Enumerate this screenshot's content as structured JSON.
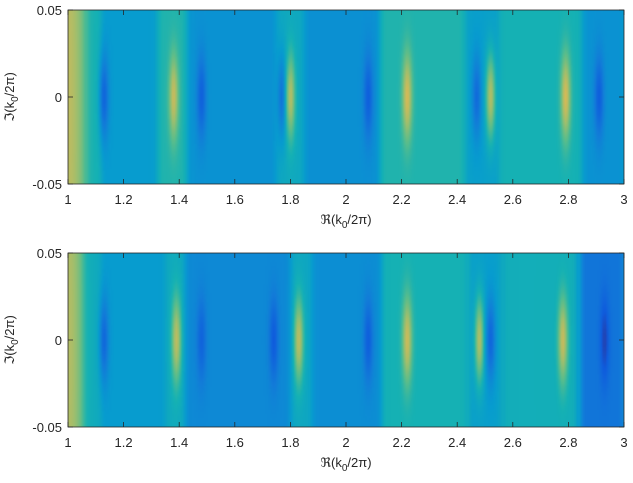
{
  "chart_data": [
    {
      "type": "heatmap",
      "title": "",
      "xlabel": "ℜ(k₀/2π)",
      "ylabel": "ℑ(k₀/2π)",
      "xlabel_parts": {
        "prefix": "ℜ(k",
        "sub": "0",
        "suffix": "/2π)"
      },
      "ylabel_parts": {
        "prefix": "ℑ(k",
        "sub": "0",
        "suffix": "/2π)"
      },
      "xlim": [
        1,
        3
      ],
      "ylim": [
        -0.05,
        0.05
      ],
      "xticks": [
        "1",
        "1.2",
        "1.4",
        "1.6",
        "1.8",
        "2",
        "2.2",
        "2.4",
        "2.6",
        "2.8",
        "3"
      ],
      "yticks": [
        "-0.05",
        "0",
        "0.05"
      ],
      "colormap": "parula",
      "grid": false,
      "base_level": 0.42,
      "features": [
        {
          "x": 1.0,
          "level": 0.8,
          "kind": "peak"
        },
        {
          "x": 1.13,
          "level": 0.16,
          "kind": "dip"
        },
        {
          "x": 1.38,
          "level": 0.82,
          "kind": "peak"
        },
        {
          "x": 1.48,
          "level": 0.14,
          "kind": "dip"
        },
        {
          "x": 1.77,
          "level": 0.2,
          "kind": "dip"
        },
        {
          "x": 1.8,
          "level": 0.78,
          "kind": "peak"
        },
        {
          "x": 2.08,
          "level": 0.13,
          "kind": "dip"
        },
        {
          "x": 2.22,
          "level": 0.85,
          "kind": "peak"
        },
        {
          "x": 2.47,
          "level": 0.18,
          "kind": "dip"
        },
        {
          "x": 2.52,
          "level": 0.78,
          "kind": "peak"
        },
        {
          "x": 2.79,
          "level": 0.85,
          "kind": "peak"
        },
        {
          "x": 2.91,
          "level": 0.13,
          "kind": "dip"
        }
      ],
      "bands": [
        {
          "x0": 1.0,
          "x1": 1.06,
          "level": 0.62
        },
        {
          "x0": 1.06,
          "x1": 1.12,
          "level": 0.5
        },
        {
          "x0": 1.12,
          "x1": 1.32,
          "level": 0.38
        },
        {
          "x0": 1.32,
          "x1": 1.43,
          "level": 0.52
        },
        {
          "x0": 1.43,
          "x1": 1.75,
          "level": 0.34
        },
        {
          "x0": 1.75,
          "x1": 1.85,
          "level": 0.45
        },
        {
          "x0": 1.85,
          "x1": 2.12,
          "level": 0.33
        },
        {
          "x0": 2.12,
          "x1": 2.43,
          "level": 0.52
        },
        {
          "x0": 2.43,
          "x1": 2.55,
          "level": 0.4
        },
        {
          "x0": 2.55,
          "x1": 2.85,
          "level": 0.5
        },
        {
          "x0": 2.85,
          "x1": 3.0,
          "level": 0.34
        }
      ]
    },
    {
      "type": "heatmap",
      "title": "",
      "xlabel": "ℜ(k₀/2π)",
      "ylabel": "ℑ(k₀/2π)",
      "xlabel_parts": {
        "prefix": "ℜ(k",
        "sub": "0",
        "suffix": "/2π)"
      },
      "ylabel_parts": {
        "prefix": "ℑ(k",
        "sub": "0",
        "suffix": "/2π)"
      },
      "xlim": [
        1,
        3
      ],
      "ylim": [
        -0.05,
        0.05
      ],
      "xticks": [
        "1",
        "1.2",
        "1.4",
        "1.6",
        "1.8",
        "2",
        "2.2",
        "2.4",
        "2.6",
        "2.8",
        "3"
      ],
      "yticks": [
        "-0.05",
        "0",
        "0.05"
      ],
      "colormap": "parula",
      "grid": false,
      "base_level": 0.4,
      "features": [
        {
          "x": 1.0,
          "level": 0.78,
          "kind": "peak"
        },
        {
          "x": 1.13,
          "level": 0.17,
          "kind": "dip"
        },
        {
          "x": 1.39,
          "level": 0.8,
          "kind": "peak"
        },
        {
          "x": 1.48,
          "level": 0.15,
          "kind": "dip"
        },
        {
          "x": 1.74,
          "level": 0.12,
          "kind": "dip"
        },
        {
          "x": 1.83,
          "level": 0.8,
          "kind": "peak"
        },
        {
          "x": 2.08,
          "level": 0.13,
          "kind": "dip"
        },
        {
          "x": 2.22,
          "level": 0.83,
          "kind": "peak"
        },
        {
          "x": 2.48,
          "level": 0.78,
          "kind": "peak"
        },
        {
          "x": 2.52,
          "level": 0.16,
          "kind": "dip"
        },
        {
          "x": 2.78,
          "level": 0.82,
          "kind": "peak"
        },
        {
          "x": 2.93,
          "level": 0.06,
          "kind": "dip"
        }
      ],
      "bands": [
        {
          "x0": 1.0,
          "x1": 1.05,
          "level": 0.58
        },
        {
          "x0": 1.05,
          "x1": 1.12,
          "level": 0.46
        },
        {
          "x0": 1.12,
          "x1": 1.35,
          "level": 0.38
        },
        {
          "x0": 1.35,
          "x1": 1.42,
          "level": 0.46
        },
        {
          "x0": 1.42,
          "x1": 1.8,
          "level": 0.3
        },
        {
          "x0": 1.8,
          "x1": 1.88,
          "level": 0.44
        },
        {
          "x0": 1.88,
          "x1": 2.13,
          "level": 0.32
        },
        {
          "x0": 2.13,
          "x1": 2.44,
          "level": 0.5
        },
        {
          "x0": 2.44,
          "x1": 2.56,
          "level": 0.4
        },
        {
          "x0": 2.56,
          "x1": 2.84,
          "level": 0.48
        },
        {
          "x0": 2.84,
          "x1": 3.0,
          "level": 0.22
        }
      ]
    }
  ]
}
